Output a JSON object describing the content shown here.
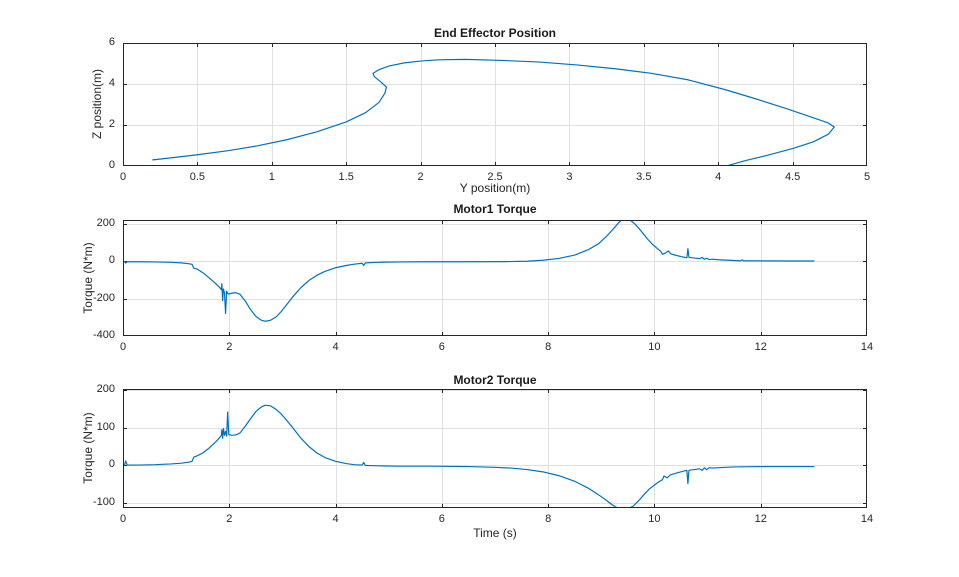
{
  "figure": {
    "colors": {
      "line": "#0072BD",
      "axis": "#262626",
      "grid": "#e0e0e0",
      "background": "#ffffff",
      "text": "#262626"
    }
  },
  "chart_data": [
    {
      "type": "line",
      "title": "End Effector Position",
      "xlabel": "Y position(m)",
      "ylabel": "Z position(m)",
      "xlim": [
        0,
        5
      ],
      "ylim": [
        0,
        6
      ],
      "xticks": [
        0,
        0.5,
        1,
        1.5,
        2,
        2.5,
        3,
        3.5,
        4,
        4.5,
        5
      ],
      "xtick_labels": [
        "0",
        "0.5",
        "1",
        "1.5",
        "2",
        "2.5",
        "3",
        "3.5",
        "4",
        "4.5",
        "5"
      ],
      "yticks": [
        0,
        2,
        4,
        6
      ],
      "ytick_labels": [
        "0",
        "2",
        "4",
        "6"
      ],
      "grid": true,
      "legend": null,
      "series": [
        {
          "name": "end-effector-path",
          "points": [
            [
              0.2,
              0.3
            ],
            [
              0.35,
              0.42
            ],
            [
              0.5,
              0.55
            ],
            [
              0.7,
              0.74
            ],
            [
              0.9,
              0.98
            ],
            [
              1.1,
              1.28
            ],
            [
              1.3,
              1.66
            ],
            [
              1.5,
              2.15
            ],
            [
              1.63,
              2.6
            ],
            [
              1.72,
              3.1
            ],
            [
              1.76,
              3.55
            ],
            [
              1.77,
              3.85
            ],
            [
              1.73,
              4.12
            ],
            [
              1.69,
              4.35
            ],
            [
              1.68,
              4.52
            ],
            [
              1.72,
              4.7
            ],
            [
              1.79,
              4.88
            ],
            [
              1.89,
              5.03
            ],
            [
              2.0,
              5.12
            ],
            [
              2.12,
              5.18
            ],
            [
              2.3,
              5.2
            ],
            [
              2.55,
              5.15
            ],
            [
              2.8,
              5.07
            ],
            [
              3.05,
              4.93
            ],
            [
              3.3,
              4.75
            ],
            [
              3.55,
              4.52
            ],
            [
              3.8,
              4.2
            ],
            [
              4.05,
              3.72
            ],
            [
              4.25,
              3.28
            ],
            [
              4.45,
              2.82
            ],
            [
              4.62,
              2.4
            ],
            [
              4.74,
              2.1
            ],
            [
              4.78,
              1.9
            ],
            [
              4.74,
              1.55
            ],
            [
              4.64,
              1.18
            ],
            [
              4.5,
              0.85
            ],
            [
              4.33,
              0.52
            ],
            [
              4.18,
              0.26
            ],
            [
              4.08,
              0.05
            ],
            [
              4.06,
              0.0
            ]
          ]
        }
      ]
    },
    {
      "type": "line",
      "title": "Motor1 Torque",
      "xlabel": "",
      "ylabel": "Torque (N*m)",
      "xlim": [
        0,
        14
      ],
      "ylim": [
        -400,
        222
      ],
      "xticks": [
        0,
        2,
        4,
        6,
        8,
        10,
        12,
        14
      ],
      "xtick_labels": [
        "0",
        "2",
        "4",
        "6",
        "8",
        "10",
        "12",
        "14"
      ],
      "yticks": [
        -400,
        -200,
        0,
        200
      ],
      "ytick_labels": [
        "-400",
        "-200",
        "0",
        "200"
      ],
      "grid": true,
      "legend": null,
      "series": [
        {
          "name": "motor1-torque",
          "points": [
            [
              0,
              -2
            ],
            [
              0.03,
              -2
            ],
            [
              0.05,
              -9
            ],
            [
              0.08,
              -2
            ],
            [
              0.3,
              -2
            ],
            [
              0.6,
              -3
            ],
            [
              0.9,
              -5
            ],
            [
              1.1,
              -8
            ],
            [
              1.25,
              -13
            ],
            [
              1.3,
              -16
            ],
            [
              1.33,
              -36
            ],
            [
              1.4,
              -42
            ],
            [
              1.5,
              -60
            ],
            [
              1.62,
              -88
            ],
            [
              1.74,
              -118
            ],
            [
              1.82,
              -140
            ],
            [
              1.85,
              -152
            ],
            [
              1.86,
              -120
            ],
            [
              1.875,
              -210
            ],
            [
              1.89,
              -148
            ],
            [
              1.91,
              -168
            ],
            [
              1.93,
              -280
            ],
            [
              1.95,
              -160
            ],
            [
              1.98,
              -175
            ],
            [
              2.05,
              -170
            ],
            [
              2.12,
              -168
            ],
            [
              2.2,
              -176
            ],
            [
              2.3,
              -212
            ],
            [
              2.4,
              -258
            ],
            [
              2.5,
              -295
            ],
            [
              2.6,
              -315
            ],
            [
              2.68,
              -321
            ],
            [
              2.78,
              -315
            ],
            [
              2.88,
              -298
            ],
            [
              2.98,
              -268
            ],
            [
              3.08,
              -232
            ],
            [
              3.2,
              -188
            ],
            [
              3.35,
              -140
            ],
            [
              3.5,
              -102
            ],
            [
              3.65,
              -74
            ],
            [
              3.8,
              -54
            ],
            [
              4.0,
              -34
            ],
            [
              4.2,
              -22
            ],
            [
              4.35,
              -15
            ],
            [
              4.5,
              -10
            ],
            [
              4.53,
              -22
            ],
            [
              4.56,
              -8
            ],
            [
              4.8,
              -5
            ],
            [
              5.2,
              -3
            ],
            [
              5.8,
              -2
            ],
            [
              6.5,
              -2
            ],
            [
              7.2,
              -1
            ],
            [
              7.6,
              1
            ],
            [
              7.9,
              6
            ],
            [
              8.2,
              16
            ],
            [
              8.5,
              34
            ],
            [
              8.75,
              62
            ],
            [
              8.95,
              95
            ],
            [
              9.1,
              135
            ],
            [
              9.22,
              172
            ],
            [
              9.32,
              205
            ],
            [
              9.38,
              222
            ],
            [
              9.5,
              222
            ],
            [
              9.55,
              220
            ],
            [
              9.62,
              204
            ],
            [
              9.7,
              180
            ],
            [
              9.78,
              152
            ],
            [
              9.87,
              120
            ],
            [
              9.96,
              92
            ],
            [
              10.05,
              70
            ],
            [
              10.12,
              54
            ],
            [
              10.15,
              38
            ],
            [
              10.2,
              44
            ],
            [
              10.26,
              56
            ],
            [
              10.31,
              40
            ],
            [
              10.4,
              33
            ],
            [
              10.5,
              26
            ],
            [
              10.58,
              21
            ],
            [
              10.61,
              20
            ],
            [
              10.63,
              68
            ],
            [
              10.65,
              22
            ],
            [
              10.75,
              18
            ],
            [
              10.85,
              15
            ],
            [
              10.9,
              21
            ],
            [
              10.94,
              11
            ],
            [
              10.98,
              17
            ],
            [
              11.03,
              10
            ],
            [
              11.1,
              12
            ],
            [
              11.2,
              9
            ],
            [
              11.35,
              7
            ],
            [
              11.5,
              5
            ],
            [
              11.62,
              3
            ],
            [
              11.65,
              8
            ],
            [
              11.68,
              3
            ],
            [
              12.0,
              3
            ],
            [
              12.5,
              2
            ],
            [
              13.0,
              2
            ]
          ]
        }
      ]
    },
    {
      "type": "line",
      "title": "Motor2 Torque",
      "xlabel": "Time (s)",
      "ylabel": "Torque (N*m)",
      "xlim": [
        0,
        14
      ],
      "ylim": [
        -113,
        203
      ],
      "xticks": [
        0,
        2,
        4,
        6,
        8,
        10,
        12,
        14
      ],
      "xtick_labels": [
        "0",
        "2",
        "4",
        "6",
        "8",
        "10",
        "12",
        "14"
      ],
      "yticks": [
        -100,
        0,
        100,
        200
      ],
      "ytick_labels": [
        "-100",
        "0",
        "100",
        "200"
      ],
      "grid": true,
      "legend": null,
      "series": [
        {
          "name": "motor2-torque",
          "points": [
            [
              0,
              1
            ],
            [
              0.03,
              1
            ],
            [
              0.05,
              12
            ],
            [
              0.08,
              1
            ],
            [
              0.3,
              1
            ],
            [
              0.6,
              2
            ],
            [
              0.9,
              4
            ],
            [
              1.1,
              6
            ],
            [
              1.25,
              9
            ],
            [
              1.3,
              11
            ],
            [
              1.33,
              22
            ],
            [
              1.4,
              26
            ],
            [
              1.5,
              33
            ],
            [
              1.62,
              46
            ],
            [
              1.74,
              62
            ],
            [
              1.82,
              74
            ],
            [
              1.85,
              80
            ],
            [
              1.86,
              95
            ],
            [
              1.875,
              72
            ],
            [
              1.89,
              98
            ],
            [
              1.91,
              80
            ],
            [
              1.93,
              90
            ],
            [
              1.95,
              78
            ],
            [
              1.97,
              142
            ],
            [
              1.99,
              82
            ],
            [
              2.05,
              80
            ],
            [
              2.12,
              81
            ],
            [
              2.2,
              86
            ],
            [
              2.3,
              104
            ],
            [
              2.4,
              124
            ],
            [
              2.5,
              143
            ],
            [
              2.6,
              155
            ],
            [
              2.68,
              160
            ],
            [
              2.78,
              158
            ],
            [
              2.88,
              149
            ],
            [
              2.98,
              136
            ],
            [
              3.08,
              120
            ],
            [
              3.2,
              99
            ],
            [
              3.35,
              72
            ],
            [
              3.5,
              50
            ],
            [
              3.65,
              33
            ],
            [
              3.8,
              21
            ],
            [
              4.0,
              11
            ],
            [
              4.2,
              5
            ],
            [
              4.35,
              2
            ],
            [
              4.5,
              1
            ],
            [
              4.53,
              8
            ],
            [
              4.56,
              0
            ],
            [
              4.8,
              -1
            ],
            [
              5.2,
              -2
            ],
            [
              5.8,
              -2
            ],
            [
              6.5,
              -3
            ],
            [
              7.0,
              -5
            ],
            [
              7.3,
              -7
            ],
            [
              7.6,
              -11
            ],
            [
              7.9,
              -17
            ],
            [
              8.2,
              -27
            ],
            [
              8.5,
              -42
            ],
            [
              8.75,
              -60
            ],
            [
              8.95,
              -78
            ],
            [
              9.1,
              -93
            ],
            [
              9.2,
              -104
            ],
            [
              9.28,
              -111
            ],
            [
              9.32,
              -113
            ],
            [
              9.52,
              -113
            ],
            [
              9.6,
              -108
            ],
            [
              9.7,
              -94
            ],
            [
              9.8,
              -78
            ],
            [
              9.9,
              -63
            ],
            [
              10.0,
              -52
            ],
            [
              10.08,
              -44
            ],
            [
              10.15,
              -38
            ],
            [
              10.18,
              -28
            ],
            [
              10.24,
              -33
            ],
            [
              10.3,
              -25
            ],
            [
              10.4,
              -21
            ],
            [
              10.5,
              -17
            ],
            [
              10.58,
              -14
            ],
            [
              10.61,
              -13
            ],
            [
              10.63,
              -48
            ],
            [
              10.65,
              -13
            ],
            [
              10.75,
              -11
            ],
            [
              10.85,
              -9
            ],
            [
              10.9,
              -13
            ],
            [
              10.94,
              -6
            ],
            [
              10.98,
              -11
            ],
            [
              11.03,
              -6
            ],
            [
              11.1,
              -7
            ],
            [
              11.2,
              -6
            ],
            [
              11.35,
              -5
            ],
            [
              11.5,
              -4
            ],
            [
              12.0,
              -3
            ],
            [
              12.5,
              -3
            ],
            [
              13.0,
              -3
            ]
          ]
        }
      ]
    }
  ]
}
